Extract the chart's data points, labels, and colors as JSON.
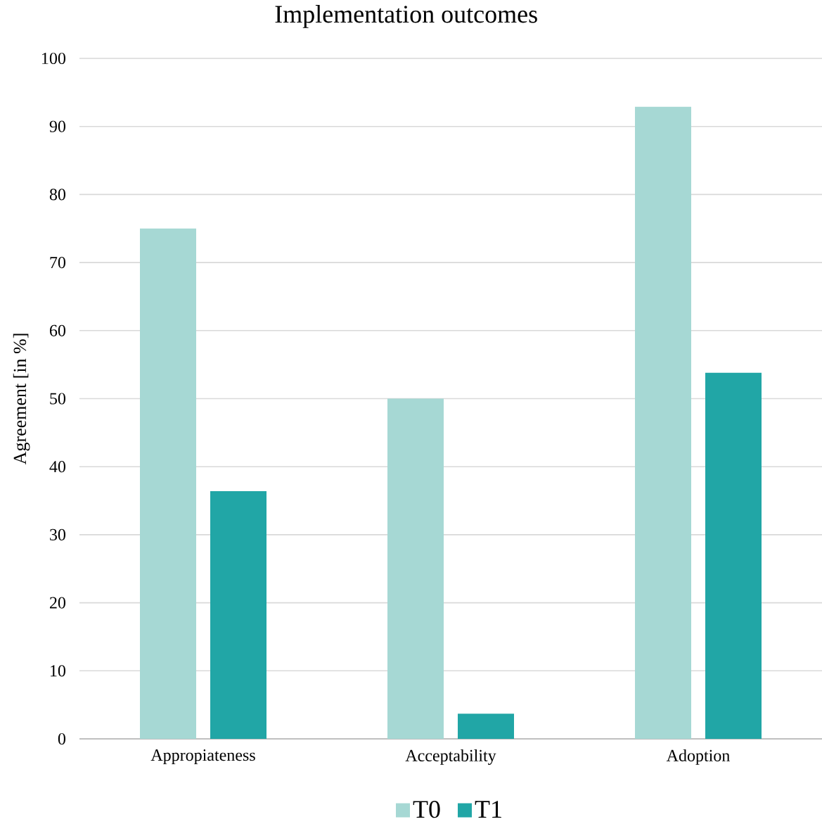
{
  "chart_data": {
    "type": "bar",
    "title": "Implementation outcomes",
    "ylabel": "Agreement [in %]",
    "categories": [
      "Appropiateness",
      "Acceptability",
      "Adoption"
    ],
    "series": [
      {
        "name": "T0",
        "color": "#a6d8d4",
        "values": [
          75,
          50,
          92.9
        ]
      },
      {
        "name": "T1",
        "color": "#21a6a6",
        "values": [
          36.4,
          3.7,
          53.8
        ]
      }
    ],
    "ylim": [
      0,
      100
    ],
    "yticks": [
      0,
      10,
      20,
      30,
      40,
      50,
      60,
      70,
      80,
      90,
      100
    ],
    "grid": "y",
    "legend": "bottom"
  }
}
